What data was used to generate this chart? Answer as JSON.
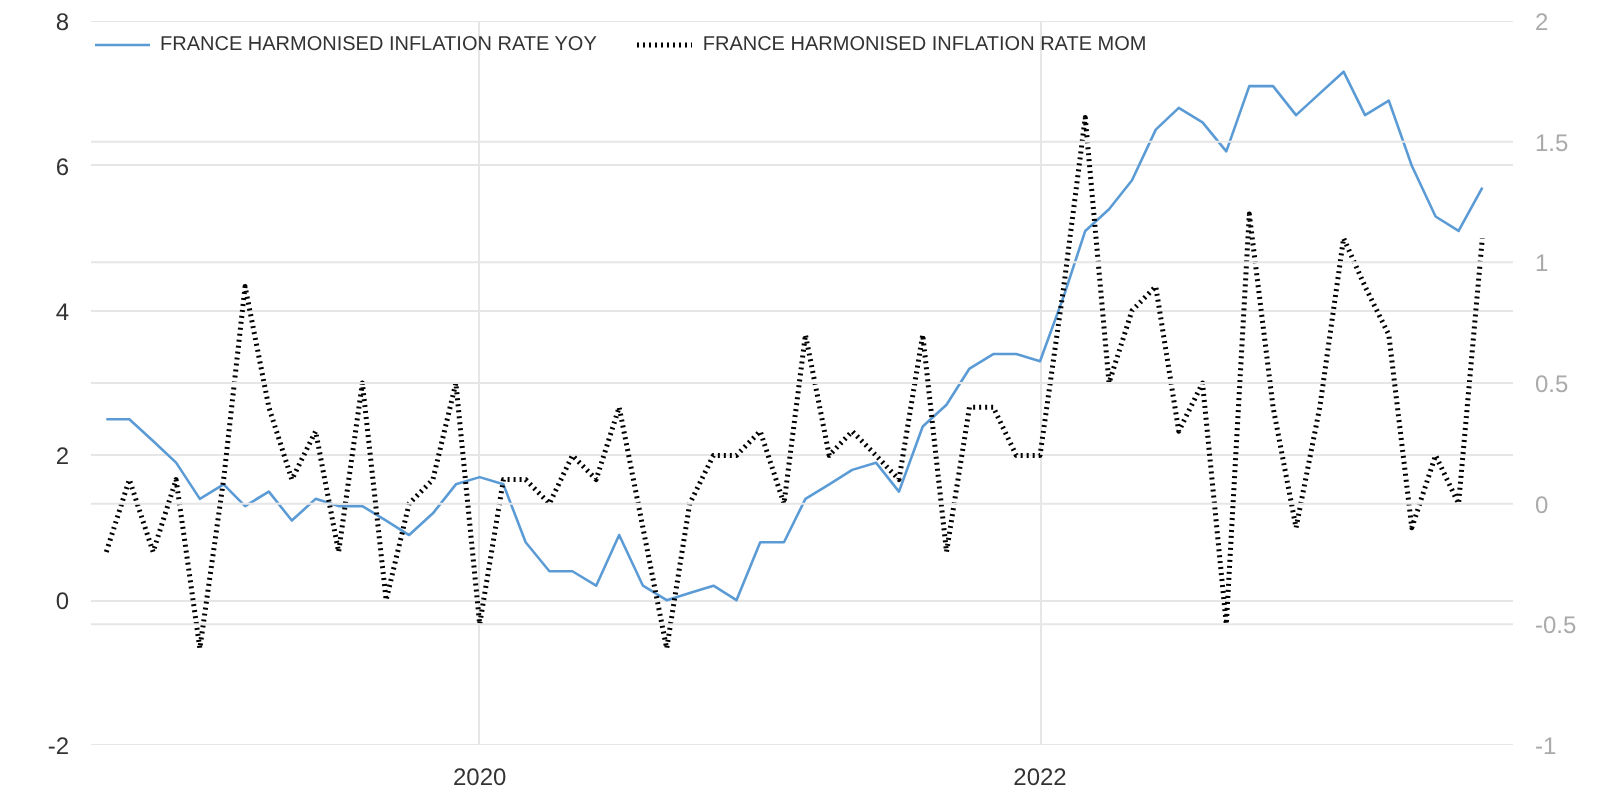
{
  "chart_data": {
    "type": "line",
    "x": [
      "2018-09",
      "2018-10",
      "2018-11",
      "2018-12",
      "2019-01",
      "2019-02",
      "2019-03",
      "2019-04",
      "2019-05",
      "2019-06",
      "2019-07",
      "2019-08",
      "2019-09",
      "2019-10",
      "2019-11",
      "2019-12",
      "2020-01",
      "2020-02",
      "2020-03",
      "2020-04",
      "2020-05",
      "2020-06",
      "2020-07",
      "2020-08",
      "2020-09",
      "2020-10",
      "2020-11",
      "2020-12",
      "2021-01",
      "2021-02",
      "2021-03",
      "2021-04",
      "2021-05",
      "2021-06",
      "2021-07",
      "2021-08",
      "2021-09",
      "2021-10",
      "2021-11",
      "2021-12",
      "2022-01",
      "2022-02",
      "2022-03",
      "2022-04",
      "2022-05",
      "2022-06",
      "2022-07",
      "2022-08",
      "2022-09",
      "2022-10",
      "2022-11",
      "2022-12",
      "2023-01",
      "2023-02",
      "2023-03",
      "2023-04",
      "2023-05",
      "2023-06",
      "2023-07",
      "2023-08"
    ],
    "series": [
      {
        "name": "FRANCE HARMONISED INFLATION RATE YOY",
        "color": "#5b9bd5",
        "line_style": "solid",
        "values": [
          2.5,
          2.5,
          2.2,
          1.9,
          1.4,
          1.6,
          1.3,
          1.5,
          1.1,
          1.4,
          1.3,
          1.3,
          1.1,
          0.9,
          1.2,
          1.6,
          1.7,
          1.6,
          0.8,
          0.4,
          0.4,
          0.2,
          0.9,
          0.2,
          0.0,
          0.1,
          0.2,
          0.0,
          0.8,
          0.8,
          1.4,
          1.6,
          1.8,
          1.9,
          1.5,
          2.4,
          2.7,
          3.2,
          3.4,
          3.4,
          3.3,
          4.2,
          5.1,
          5.4,
          5.8,
          6.5,
          6.8,
          6.6,
          6.2,
          7.1,
          7.1,
          6.7,
          7.0,
          7.3,
          6.7,
          6.9,
          6.0,
          5.3,
          5.1,
          5.7
        ]
      },
      {
        "name": "FRANCE HARMONISED INFLATION RATE MOM",
        "color": "#000000",
        "line_style": "dotted",
        "axis": "y2",
        "values": [
          -0.2,
          0.1,
          -0.2,
          0.1,
          -0.6,
          0.1,
          0.9,
          0.4,
          0.1,
          0.3,
          -0.2,
          0.5,
          -0.4,
          0.0,
          0.1,
          0.5,
          -0.5,
          0.1,
          0.1,
          0.0,
          0.2,
          0.1,
          0.4,
          -0.1,
          -0.6,
          0.0,
          0.2,
          0.2,
          0.3,
          0.0,
          0.7,
          0.2,
          0.3,
          0.2,
          0.1,
          0.7,
          -0.2,
          0.4,
          0.4,
          0.2,
          0.2,
          0.9,
          1.6,
          0.5,
          0.8,
          0.9,
          0.3,
          0.5,
          -0.5,
          1.2,
          0.4,
          -0.1,
          0.4,
          1.1,
          0.9,
          0.7,
          -0.1,
          0.2,
          0.0,
          1.1
        ]
      }
    ],
    "xlim": [
      "2018-08-12",
      "2023-09-10"
    ],
    "xticks": [
      "2020",
      "2022"
    ],
    "ylim": [
      -2,
      8
    ],
    "yticks": [
      -2,
      0,
      2,
      4,
      6,
      8
    ],
    "y2lim": [
      -1,
      2
    ],
    "y2ticks": [
      -1,
      -0.5,
      0,
      0.5,
      1,
      1.5,
      2
    ],
    "grid": true,
    "legend": "top left"
  }
}
